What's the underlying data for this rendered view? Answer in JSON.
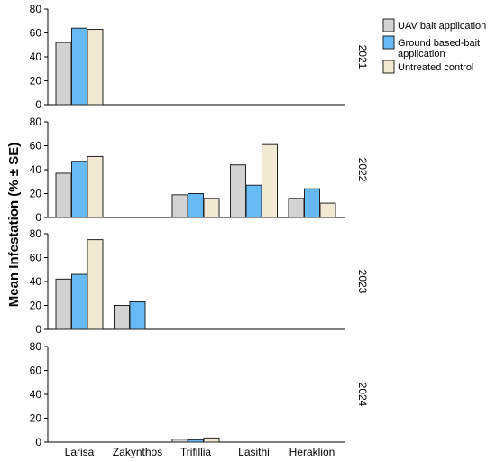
{
  "chart_data": {
    "type": "bar",
    "ylabel": "Mean Infestation (% ± SE)",
    "categories": [
      "Larisa",
      "Zakynthos",
      "Trifillia",
      "Lasithi",
      "Heraklion"
    ],
    "ylim": [
      0,
      80
    ],
    "yticks": [
      0,
      20,
      40,
      60,
      80
    ],
    "legend_position": "top-right",
    "series_legend": [
      {
        "name": "UAV bait application",
        "color": "#d3d3d3"
      },
      {
        "name": "Ground based-bait application",
        "label_lines": [
          "Ground based-bait",
          "application"
        ],
        "color": "#66bbf4"
      },
      {
        "name": "Untreated control",
        "color": "#f1e9d2"
      }
    ],
    "panels": [
      {
        "facet": "2021",
        "series": [
          {
            "name": "UAV bait application",
            "values": [
              52,
              null,
              null,
              null,
              null
            ]
          },
          {
            "name": "Ground based-bait application",
            "values": [
              64,
              null,
              null,
              null,
              null
            ]
          },
          {
            "name": "Untreated control",
            "values": [
              63,
              null,
              null,
              null,
              null
            ]
          }
        ]
      },
      {
        "facet": "2022",
        "series": [
          {
            "name": "UAV bait application",
            "values": [
              37,
              null,
              19,
              44,
              16
            ]
          },
          {
            "name": "Ground based-bait application",
            "values": [
              47,
              null,
              20,
              27,
              24
            ]
          },
          {
            "name": "Untreated control",
            "values": [
              51,
              null,
              16,
              61,
              12
            ]
          }
        ]
      },
      {
        "facet": "2023",
        "series": [
          {
            "name": "UAV bait application",
            "values": [
              42,
              20,
              null,
              null,
              null
            ]
          },
          {
            "name": "Ground based-bait application",
            "values": [
              46,
              23,
              null,
              null,
              null
            ]
          },
          {
            "name": "Untreated control",
            "values": [
              75,
              null,
              null,
              null,
              null
            ]
          }
        ]
      },
      {
        "facet": "2024",
        "series": [
          {
            "name": "UAV bait application",
            "values": [
              null,
              null,
              2.5,
              null,
              null
            ]
          },
          {
            "name": "Ground based-bait application",
            "values": [
              null,
              null,
              2,
              null,
              null
            ]
          },
          {
            "name": "Untreated control",
            "values": [
              null,
              null,
              3.5,
              null,
              null
            ]
          }
        ]
      }
    ]
  }
}
